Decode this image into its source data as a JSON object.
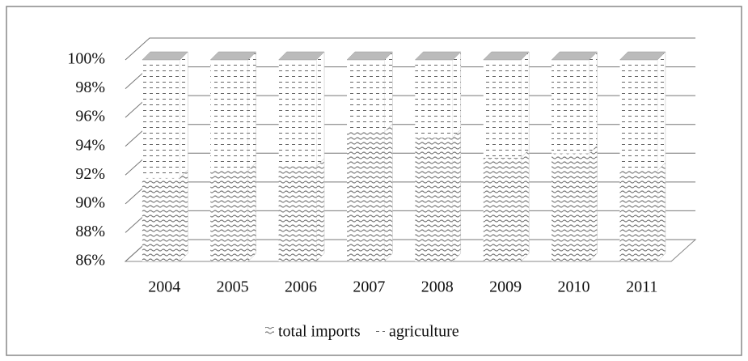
{
  "chart_data": {
    "type": "stacked_bar_3d",
    "categories": [
      "2004",
      "2005",
      "2006",
      "2007",
      "2008",
      "2009",
      "2010",
      "2011"
    ],
    "series": [
      {
        "name": "total imports",
        "color": "#777777",
        "values": [
          91.8,
          92.3,
          92.6,
          95.0,
          94.6,
          93.2,
          93.5,
          92.3
        ]
      },
      {
        "name": "agriculture",
        "color": "#666666",
        "values": [
          8.2,
          7.7,
          7.4,
          5.0,
          5.4,
          6.8,
          6.5,
          7.7
        ]
      }
    ],
    "ylim": [
      86,
      100
    ],
    "yticks": [
      {
        "value": 86,
        "label": "86%"
      },
      {
        "value": 88,
        "label": "88%"
      },
      {
        "value": 90,
        "label": "90%"
      },
      {
        "value": 92,
        "label": "92%"
      },
      {
        "value": 94,
        "label": "94%"
      },
      {
        "value": 96,
        "label": "96%"
      },
      {
        "value": 98,
        "label": "98%"
      },
      {
        "value": 100,
        "label": "100%"
      }
    ],
    "grid": true,
    "legend": "bottom"
  }
}
